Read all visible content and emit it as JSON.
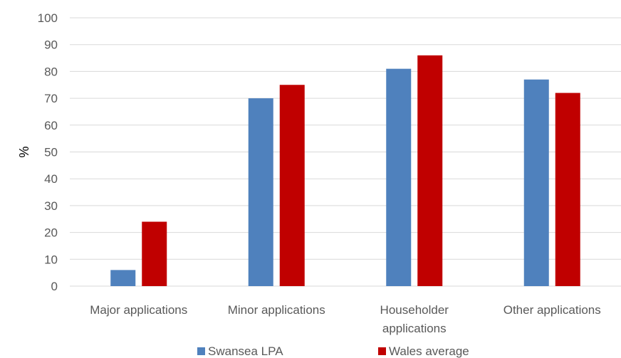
{
  "chart_data": {
    "type": "bar",
    "categories": [
      [
        "Major applications"
      ],
      [
        "Minor applications"
      ],
      [
        "Householder",
        "applications"
      ],
      [
        "Other applications"
      ]
    ],
    "series": [
      {
        "name": "Swansea LPA",
        "color": "#4f81bd",
        "values": [
          6,
          70,
          81,
          77
        ]
      },
      {
        "name": "Wales average",
        "color": "#c00000",
        "values": [
          24,
          75,
          86,
          72
        ]
      }
    ],
    "ylabel": "%",
    "xlabel": "",
    "ylim": [
      0,
      100
    ],
    "yticks": [
      0,
      10,
      20,
      30,
      40,
      50,
      60,
      70,
      80,
      90,
      100
    ],
    "grid": true,
    "legend_position": "bottom"
  }
}
